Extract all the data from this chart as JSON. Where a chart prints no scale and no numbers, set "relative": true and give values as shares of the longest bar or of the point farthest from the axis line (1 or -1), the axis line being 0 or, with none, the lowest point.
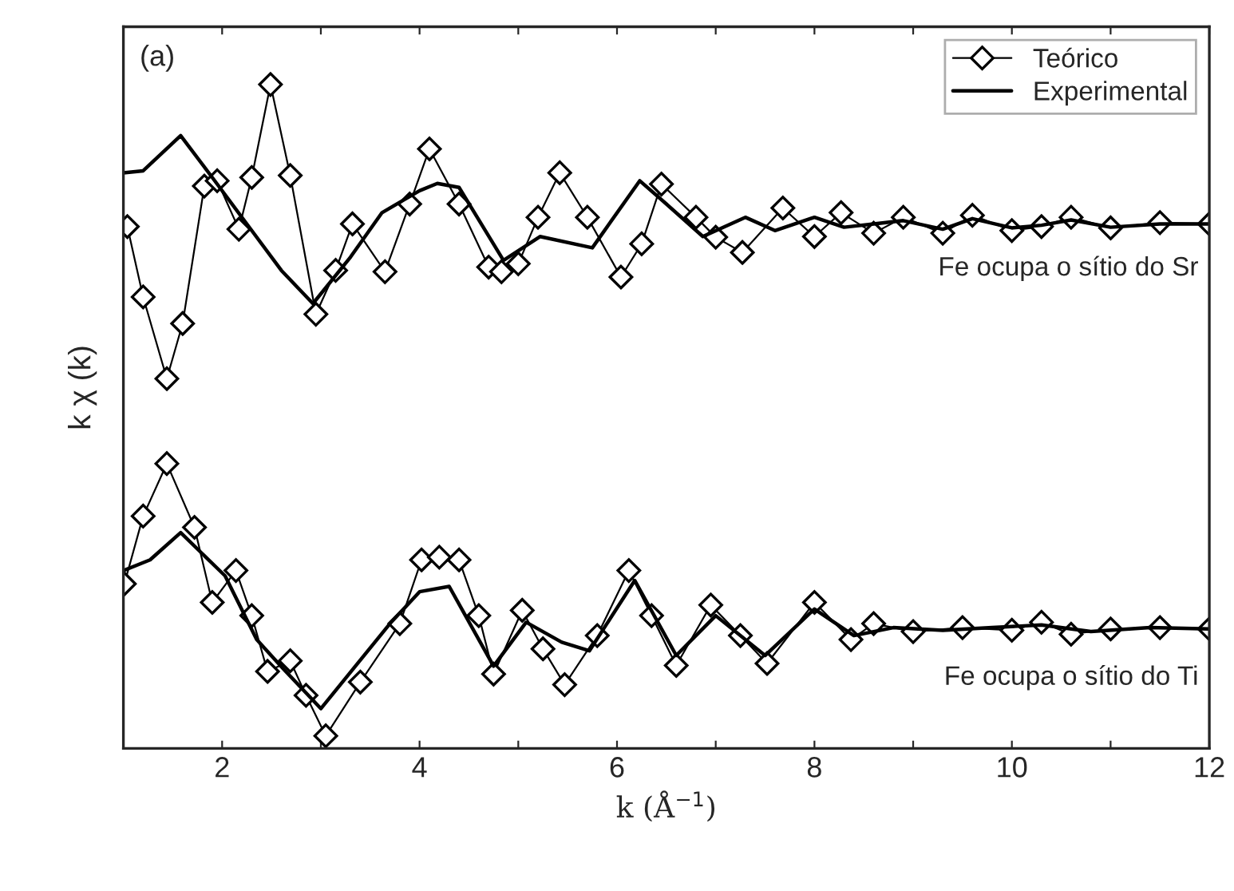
{
  "chart_data": {
    "type": "line",
    "relative": true,
    "xlabel": "k (Å$^{−1}$)",
    "ylabel": "k χ (k)",
    "xlim": [
      1,
      12
    ],
    "xticks": [
      {
        "value": 1,
        "label": null
      },
      2,
      {
        "value": 3,
        "label": null
      },
      4,
      {
        "value": 5,
        "label": null
      },
      6,
      {
        "value": 7,
        "label": null
      },
      8,
      {
        "value": 9,
        "label": null
      },
      10,
      {
        "value": 11,
        "label": null
      },
      12
    ],
    "tick_labels": "x",
    "legend": "top right",
    "grid": false,
    "annotations": [
      "(a)",
      "Fe ocupa o sítio do Sr",
      "Fe ocupa o sítio do Ti"
    ],
    "series": [
      {
        "name": "Teórico",
        "color": "#000000",
        "marker": "diamond",
        "x": [
          1.04,
          1.2,
          1.44,
          1.6,
          1.82,
          1.95,
          2.17,
          2.3,
          2.49,
          2.69,
          2.95,
          3.15,
          3.32,
          3.65,
          3.9,
          4.1,
          4.4,
          4.7,
          4.83,
          5.0,
          5.2,
          5.42,
          5.7,
          6.04,
          6.25,
          6.45,
          6.8,
          7.0,
          7.27,
          7.68,
          8.0,
          8.27,
          8.6,
          8.9,
          9.3,
          9.6,
          10.0,
          10.3,
          10.6,
          11.0,
          11.5,
          12.0
        ],
        "values": [
          0.786,
          0.68,
          0.557,
          0.64,
          0.847,
          0.855,
          0.782,
          0.86,
          1.0,
          0.863,
          0.654,
          0.72,
          0.79,
          0.718,
          0.82,
          0.903,
          0.82,
          0.725,
          0.718,
          0.73,
          0.8,
          0.867,
          0.8,
          0.71,
          0.76,
          0.85,
          0.8,
          0.77,
          0.747,
          0.814,
          0.771,
          0.807,
          0.776,
          0.8,
          0.776,
          0.803,
          0.78,
          0.786,
          0.8,
          0.784,
          0.792,
          0.79
        ]
      },
      {
        "name": "Experimental",
        "color": "#000000",
        "marker": "none",
        "x": [
          1.0,
          1.2,
          1.58,
          1.9,
          2.3,
          2.6,
          2.92,
          3.3,
          3.62,
          4.0,
          4.18,
          4.4,
          4.85,
          5.22,
          5.75,
          6.23,
          6.5,
          6.87,
          7.3,
          7.6,
          8.0,
          8.3,
          8.6,
          8.9,
          9.3,
          9.6,
          10.0,
          10.3,
          10.6,
          11.0,
          11.5,
          12.0
        ],
        "values": [
          0.867,
          0.87,
          0.923,
          0.86,
          0.78,
          0.72,
          0.67,
          0.74,
          0.807,
          0.84,
          0.851,
          0.845,
          0.735,
          0.771,
          0.754,
          0.855,
          0.82,
          0.771,
          0.8,
          0.78,
          0.8,
          0.785,
          0.79,
          0.795,
          0.782,
          0.798,
          0.784,
          0.788,
          0.796,
          0.785,
          0.79,
          0.79
        ]
      },
      {
        "color": "#000000",
        "marker": "diamond",
        "x": [
          1.01,
          1.2,
          1.44,
          1.72,
          1.9,
          2.14,
          2.3,
          2.46,
          2.69,
          2.85,
          3.05,
          3.4,
          3.8,
          4.02,
          4.2,
          4.4,
          4.6,
          4.75,
          5.04,
          5.25,
          5.47,
          5.8,
          6.12,
          6.35,
          6.6,
          6.95,
          7.25,
          7.52,
          8.0,
          8.37,
          8.6,
          9.0,
          9.5,
          10.0,
          10.3,
          10.6,
          11.0,
          11.5,
          12.0
        ],
        "values": [
          0.248,
          0.35,
          0.429,
          0.333,
          0.22,
          0.268,
          0.2,
          0.116,
          0.132,
          0.08,
          0.019,
          0.1,
          0.188,
          0.284,
          0.288,
          0.284,
          0.2,
          0.112,
          0.208,
          0.15,
          0.096,
          0.17,
          0.268,
          0.2,
          0.125,
          0.216,
          0.17,
          0.128,
          0.22,
          0.164,
          0.188,
          0.176,
          0.182,
          0.178,
          0.19,
          0.172,
          0.18,
          0.182,
          0.18
        ]
      },
      {
        "color": "#000000",
        "marker": "none",
        "x": [
          1.0,
          1.27,
          1.58,
          2.03,
          2.35,
          2.62,
          3.0,
          3.7,
          4.0,
          4.3,
          4.75,
          5.08,
          5.44,
          5.72,
          6.18,
          6.6,
          7.0,
          7.5,
          8.0,
          8.4,
          8.8,
          9.3,
          9.8,
          10.3,
          10.8,
          11.4,
          12.0
        ],
        "values": [
          0.268,
          0.284,
          0.325,
          0.26,
          0.164,
          0.12,
          0.06,
          0.188,
          0.236,
          0.244,
          0.124,
          0.19,
          0.16,
          0.147,
          0.253,
          0.14,
          0.2,
          0.14,
          0.21,
          0.17,
          0.182,
          0.178,
          0.182,
          0.186,
          0.176,
          0.182,
          0.18
        ]
      }
    ]
  }
}
